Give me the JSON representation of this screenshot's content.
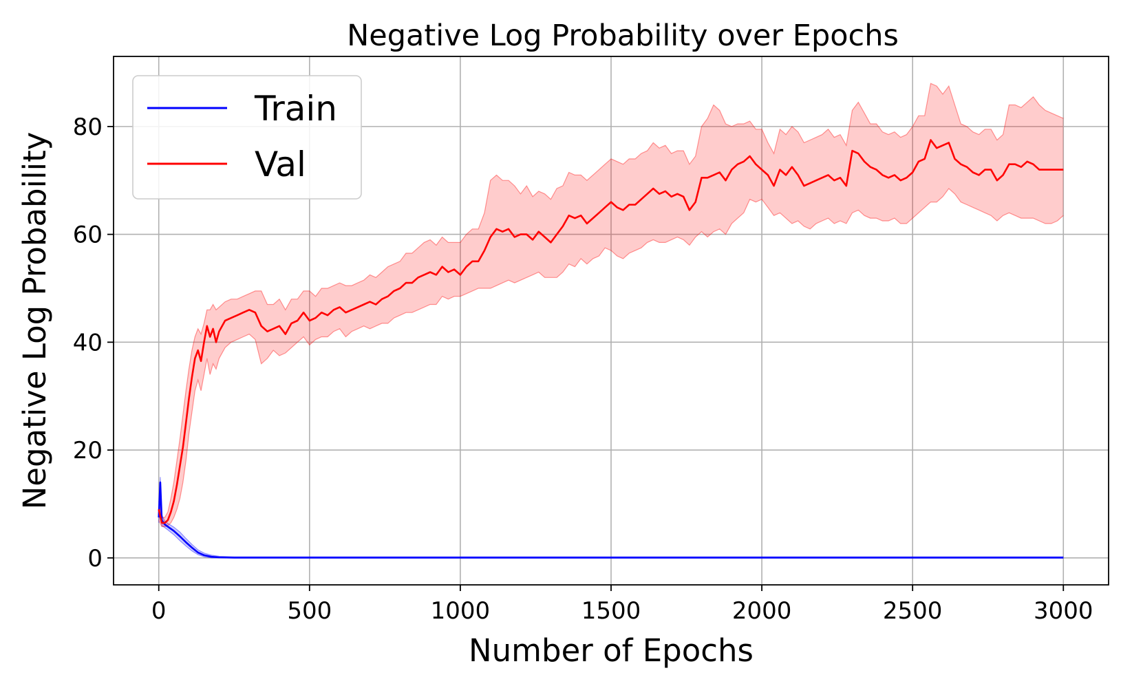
{
  "chart_data": {
    "type": "line",
    "title": "Negative Log Probability over Epochs",
    "xlabel": "Number of Epochs",
    "ylabel": "Negative Log Probability",
    "xlim": [
      -150,
      3150
    ],
    "ylim": [
      -5,
      93
    ],
    "xticks": [
      0,
      500,
      1000,
      1500,
      2000,
      2500,
      3000
    ],
    "xtick_labels": [
      "0",
      "500",
      "1000",
      "1500",
      "2000",
      "2500",
      "3000"
    ],
    "yticks": [
      0,
      20,
      40,
      60,
      80
    ],
    "ytick_labels": [
      "0",
      "20",
      "40",
      "60",
      "80"
    ],
    "grid": true,
    "legend": {
      "location": "top-left",
      "entries": [
        "Train",
        "Val"
      ]
    },
    "series": [
      {
        "name": "Train",
        "color": "#0000ff",
        "band_color": "#0000ff",
        "x": [
          0,
          5,
          10,
          20,
          30,
          50,
          70,
          90,
          110,
          130,
          150,
          175,
          200,
          250,
          300,
          400,
          500,
          700,
          1000,
          1500,
          2000,
          2500,
          3000
        ],
        "values": [
          7.5,
          14,
          7,
          6.2,
          5.8,
          5.0,
          4.0,
          2.9,
          1.9,
          1.0,
          0.5,
          0.2,
          0.1,
          0.05,
          0.05,
          0.05,
          0.05,
          0.05,
          0.05,
          0.05,
          0.05,
          0.05,
          0.05
        ],
        "lower": [
          6.5,
          11,
          6.0,
          5.6,
          5.2,
          4.3,
          3.2,
          2.2,
          1.3,
          0.6,
          0.2,
          0.0,
          0.0,
          0.0,
          0.0,
          0.0,
          0.0,
          0.0,
          0.0,
          0.0,
          0.0,
          0.0,
          0.0
        ],
        "upper": [
          8.5,
          15,
          8.0,
          6.8,
          6.4,
          5.7,
          4.8,
          3.6,
          2.5,
          1.5,
          0.9,
          0.5,
          0.3,
          0.2,
          0.2,
          0.2,
          0.2,
          0.2,
          0.2,
          0.2,
          0.2,
          0.2,
          0.2
        ]
      },
      {
        "name": "Val",
        "color": "#ff0000",
        "band_color": "#ff0000",
        "x": [
          0,
          10,
          20,
          30,
          40,
          50,
          60,
          70,
          80,
          90,
          100,
          110,
          120,
          130,
          140,
          150,
          160,
          170,
          180,
          190,
          200,
          220,
          240,
          260,
          280,
          300,
          320,
          340,
          360,
          380,
          400,
          420,
          440,
          460,
          480,
          500,
          520,
          540,
          560,
          580,
          600,
          620,
          640,
          660,
          680,
          700,
          720,
          740,
          760,
          780,
          800,
          820,
          840,
          860,
          880,
          900,
          920,
          940,
          960,
          980,
          1000,
          1020,
          1040,
          1060,
          1080,
          1100,
          1120,
          1140,
          1160,
          1180,
          1200,
          1220,
          1240,
          1260,
          1280,
          1300,
          1320,
          1340,
          1360,
          1380,
          1400,
          1420,
          1440,
          1460,
          1480,
          1500,
          1520,
          1540,
          1560,
          1580,
          1600,
          1620,
          1640,
          1660,
          1680,
          1700,
          1720,
          1740,
          1760,
          1780,
          1800,
          1820,
          1840,
          1860,
          1880,
          1900,
          1920,
          1940,
          1960,
          1980,
          2000,
          2020,
          2040,
          2060,
          2080,
          2100,
          2120,
          2140,
          2160,
          2180,
          2200,
          2220,
          2240,
          2260,
          2280,
          2300,
          2320,
          2340,
          2360,
          2380,
          2400,
          2420,
          2440,
          2460,
          2480,
          2500,
          2520,
          2540,
          2560,
          2580,
          2600,
          2620,
          2640,
          2660,
          2680,
          2700,
          2720,
          2740,
          2760,
          2780,
          2800,
          2820,
          2840,
          2860,
          2880,
          2900,
          2920,
          2940,
          2960,
          2980,
          3000
        ],
        "values": [
          9.0,
          6.5,
          6.5,
          7.0,
          8.5,
          10.5,
          13.5,
          17.0,
          20.5,
          25.0,
          29.5,
          33.5,
          37.0,
          38.5,
          36.5,
          40.0,
          43.0,
          41.0,
          42.5,
          40.0,
          42.0,
          44.0,
          44.5,
          45.0,
          45.5,
          46.0,
          45.5,
          43.0,
          42.0,
          42.5,
          43.0,
          41.5,
          43.5,
          44.0,
          45.5,
          44.0,
          44.5,
          45.5,
          45.0,
          46.0,
          46.5,
          45.5,
          46.0,
          46.5,
          47.0,
          47.5,
          47.0,
          48.0,
          48.5,
          49.5,
          50.0,
          51.0,
          51.0,
          52.0,
          52.5,
          53.0,
          52.5,
          54.0,
          53.0,
          53.5,
          52.5,
          54.0,
          55.0,
          55.0,
          57.0,
          59.5,
          61.0,
          60.5,
          61.0,
          59.5,
          60.0,
          60.0,
          59.0,
          60.5,
          59.5,
          58.5,
          60.0,
          61.5,
          63.5,
          63.0,
          63.5,
          62.0,
          63.0,
          64.0,
          65.0,
          66.0,
          65.0,
          64.5,
          65.5,
          65.5,
          66.5,
          67.5,
          68.5,
          67.5,
          68.0,
          67.0,
          67.5,
          67.0,
          64.5,
          66.0,
          70.5,
          70.5,
          71.0,
          71.5,
          70.0,
          72.0,
          73.0,
          73.5,
          74.5,
          73.0,
          72.0,
          71.0,
          69.0,
          72.0,
          71.0,
          72.5,
          71.0,
          69.0,
          69.5,
          70.0,
          70.5,
          71.0,
          70.0,
          70.5,
          69.0,
          75.5,
          75.0,
          73.5,
          72.5,
          72.0,
          71.0,
          70.5,
          71.0,
          70.0,
          70.5,
          71.5,
          73.5,
          74.0,
          77.5,
          76.0,
          76.5,
          77.0,
          74.0,
          73.0,
          72.5,
          71.5,
          71.0,
          72.0,
          72.0,
          70.0,
          71.0,
          73.0,
          73.0,
          72.5,
          73.5,
          73.0,
          72.0,
          72.0,
          72.0,
          72.0,
          72.0
        ],
        "lower": [
          7.0,
          5.8,
          5.8,
          6.0,
          6.5,
          7.5,
          9.0,
          11.0,
          14.0,
          18.0,
          23.0,
          27.0,
          31.0,
          33.0,
          31.0,
          34.0,
          37.0,
          34.0,
          36.0,
          35.0,
          37.0,
          39.0,
          40.0,
          40.5,
          41.0,
          41.5,
          40.5,
          36.0,
          37.0,
          38.5,
          37.5,
          38.0,
          39.0,
          40.0,
          41.0,
          39.5,
          40.5,
          41.0,
          41.0,
          42.0,
          42.5,
          41.0,
          42.0,
          42.5,
          43.0,
          42.5,
          43.0,
          43.5,
          43.5,
          44.5,
          45.0,
          45.5,
          45.5,
          46.0,
          46.5,
          47.0,
          47.0,
          48.5,
          48.0,
          48.5,
          48.5,
          49.0,
          49.5,
          50.0,
          50.0,
          50.0,
          50.5,
          51.0,
          51.5,
          51.0,
          51.5,
          52.0,
          52.5,
          53.0,
          52.0,
          52.0,
          52.0,
          53.0,
          54.5,
          54.0,
          55.5,
          54.5,
          55.5,
          56.0,
          57.5,
          57.0,
          56.0,
          55.5,
          56.5,
          57.0,
          57.5,
          58.5,
          59.0,
          58.5,
          58.5,
          59.0,
          59.5,
          59.0,
          58.0,
          59.5,
          60.5,
          59.5,
          60.5,
          61.0,
          60.0,
          62.0,
          63.0,
          64.0,
          66.5,
          66.0,
          66.5,
          65.0,
          63.5,
          64.0,
          63.0,
          62.0,
          62.5,
          61.5,
          61.0,
          62.0,
          62.5,
          63.0,
          62.0,
          62.5,
          62.0,
          64.0,
          64.5,
          63.5,
          63.0,
          63.0,
          62.5,
          62.5,
          63.0,
          62.0,
          62.0,
          63.0,
          64.0,
          65.0,
          66.0,
          66.0,
          67.0,
          68.5,
          67.5,
          66.0,
          65.5,
          65.0,
          64.5,
          64.0,
          63.5,
          62.5,
          63.5,
          64.0,
          63.5,
          63.0,
          63.0,
          63.0,
          62.5,
          62.0,
          62.0,
          62.5,
          63.5
        ],
        "upper": [
          10.5,
          7.5,
          7.5,
          8.5,
          11.0,
          14.0,
          18.0,
          22.0,
          26.5,
          31.0,
          35.0,
          38.5,
          41.0,
          42.5,
          41.5,
          43.5,
          46.0,
          46.0,
          47.0,
          46.0,
          46.5,
          47.5,
          48.0,
          48.0,
          48.5,
          49.0,
          49.5,
          49.5,
          47.0,
          47.0,
          48.0,
          46.0,
          48.0,
          48.0,
          49.5,
          49.5,
          48.5,
          50.0,
          50.0,
          50.5,
          51.0,
          50.5,
          50.5,
          51.0,
          51.5,
          52.5,
          52.0,
          53.0,
          54.0,
          54.5,
          55.0,
          56.5,
          56.5,
          57.5,
          58.5,
          59.0,
          58.0,
          59.5,
          58.5,
          58.5,
          58.5,
          60.0,
          61.0,
          61.0,
          64.0,
          70.0,
          71.0,
          70.0,
          70.0,
          69.0,
          67.5,
          69.0,
          67.0,
          68.0,
          67.5,
          66.5,
          68.5,
          69.0,
          71.5,
          71.0,
          71.0,
          70.0,
          71.0,
          72.0,
          73.0,
          74.0,
          73.5,
          73.0,
          74.0,
          74.0,
          75.0,
          75.5,
          77.0,
          76.0,
          76.5,
          75.0,
          75.5,
          75.5,
          73.0,
          74.5,
          80.0,
          81.5,
          84.0,
          83.0,
          80.5,
          80.0,
          80.5,
          80.5,
          81.0,
          79.5,
          79.5,
          77.0,
          75.0,
          79.5,
          78.5,
          80.0,
          79.0,
          77.0,
          77.5,
          78.0,
          78.5,
          79.5,
          78.0,
          78.5,
          76.5,
          83.0,
          84.5,
          82.5,
          80.5,
          80.5,
          79.0,
          78.5,
          79.0,
          78.0,
          78.5,
          80.0,
          82.0,
          82.0,
          88.0,
          87.5,
          86.0,
          87.5,
          84.0,
          80.5,
          80.0,
          79.0,
          78.5,
          79.5,
          79.5,
          77.5,
          78.5,
          84.0,
          84.0,
          83.5,
          84.5,
          85.5,
          84.0,
          83.0,
          82.5,
          82.0,
          81.5
        ]
      }
    ]
  }
}
